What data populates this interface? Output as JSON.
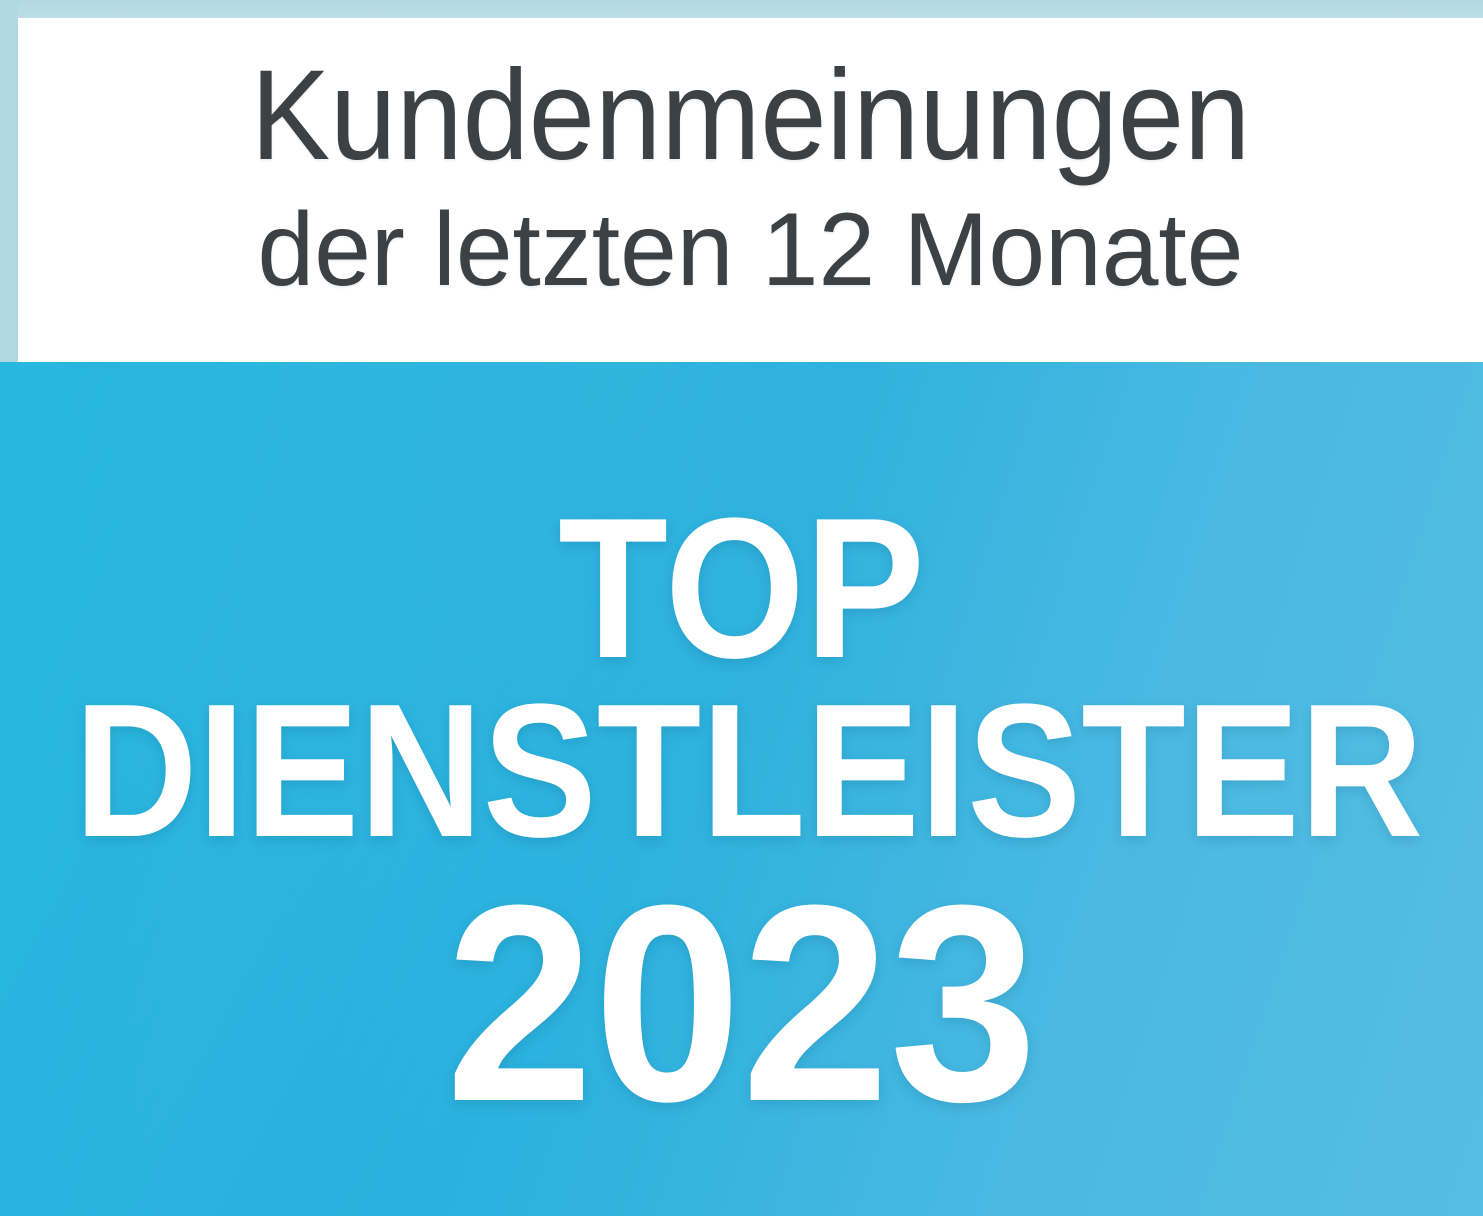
{
  "badge": {
    "header": {
      "line1": "Kundenmeinungen",
      "line2": "der letzten 12 Monate"
    },
    "award": {
      "line1": "TOP",
      "line2": "DIENSTLEISTER",
      "year": "2023"
    },
    "colors": {
      "frame_pale_blue": "#b1d9e2",
      "header_background": "#ffffff",
      "header_text": "#3e4144",
      "band_blue_left": "#10afdb",
      "band_blue_right": "#55bde4",
      "award_text": "#ffffff"
    }
  }
}
